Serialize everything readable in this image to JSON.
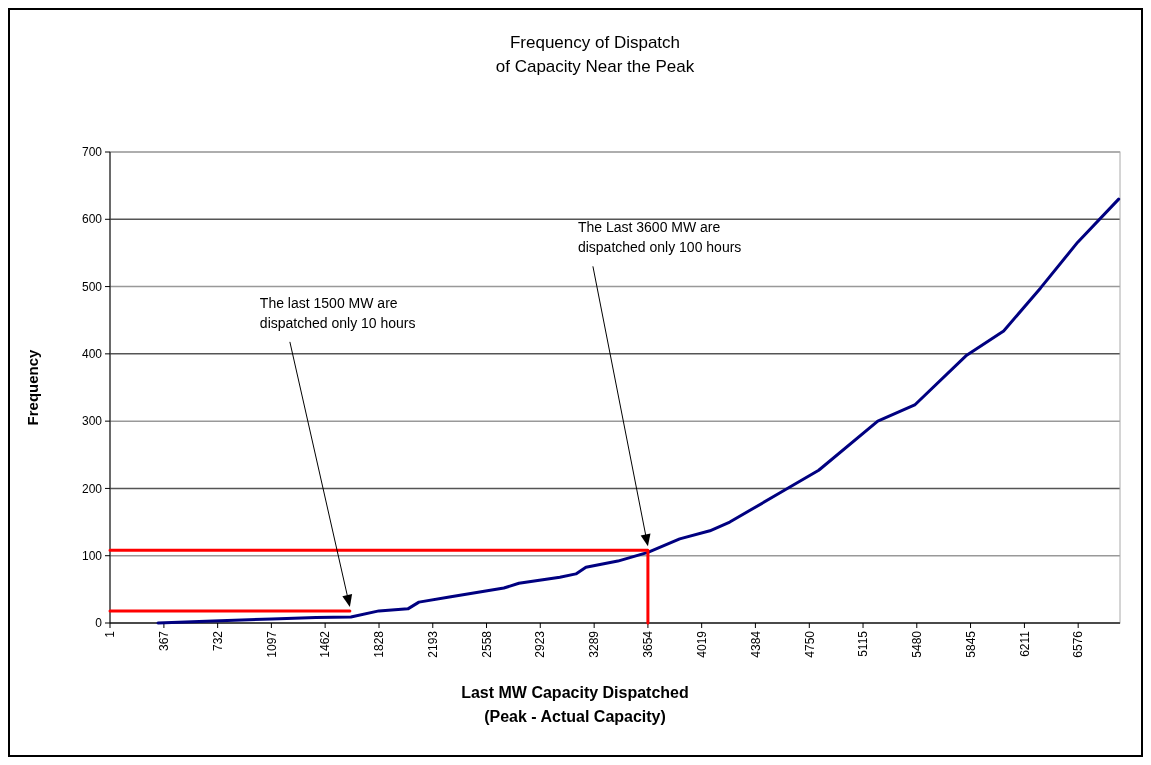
{
  "chart_data": {
    "type": "line",
    "title": "Frequency of Dispatch\nof Capacity Near the Peak",
    "xlabel": "Last MW Capacity Dispatched\n(Peak - Actual Capacity)",
    "ylabel": "Frequency",
    "xlim": [
      1,
      6860
    ],
    "xticks": [
      1,
      367,
      732,
      1097,
      1462,
      1828,
      2193,
      2558,
      2923,
      3289,
      3654,
      4019,
      4384,
      4750,
      5115,
      5480,
      5845,
      6211,
      6576
    ],
    "ylim": [
      0,
      700
    ],
    "yticks": [
      0,
      100,
      200,
      300,
      400,
      500,
      600,
      700
    ],
    "grid": "y",
    "series": [
      {
        "color": "#000080",
        "x": [
          327,
          700,
          1101,
          1400,
          1637,
          1827,
          2024,
          2099,
          2316,
          2676,
          2778,
          3056,
          3165,
          3233,
          3450,
          3654,
          3870,
          4075,
          4210,
          4563,
          4814,
          5215,
          5466,
          5819,
          6070,
          6321,
          6573,
          6851
        ],
        "values": [
          0,
          3,
          6,
          8,
          9,
          18,
          21,
          31,
          39,
          52,
          59,
          68,
          73,
          83,
          92,
          105,
          125,
          137,
          150,
          195,
          227,
          300,
          324,
          398,
          434,
          498,
          566,
          630
        ]
      },
      {
        "color": "#ff0000",
        "x": [
          1,
          1630
        ],
        "values": [
          18,
          18
        ]
      },
      {
        "color": "#ff0000",
        "x": [
          1,
          3654,
          3654
        ],
        "values": [
          108,
          108,
          0
        ]
      }
    ],
    "annotations": [
      "The last 1500 MW are\ndispatched only 10 hours",
      "The Last 3600 MW are\ndispatched only 100 hours"
    ]
  }
}
